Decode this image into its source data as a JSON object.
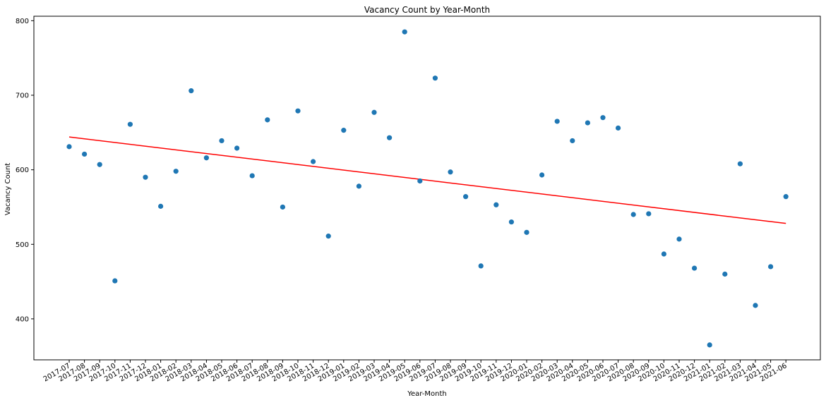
{
  "chart_data": {
    "type": "scatter",
    "title": "Vacancy Count by Year-Month",
    "xlabel": "Year-Month",
    "ylabel": "Vacancy Count",
    "categories": [
      "2017-07",
      "2017-08",
      "2017-09",
      "2017-10",
      "2017-11",
      "2017-12",
      "2018-01",
      "2018-02",
      "2018-03",
      "2018-04",
      "2018-05",
      "2018-06",
      "2018-07",
      "2018-08",
      "2018-09",
      "2018-10",
      "2018-11",
      "2018-12",
      "2019-01",
      "2019-02",
      "2019-03",
      "2019-04",
      "2019-05",
      "2019-06",
      "2019-07",
      "2019-08",
      "2019-09",
      "2019-10",
      "2019-11",
      "2019-12",
      "2020-01",
      "2020-02",
      "2020-03",
      "2020-04",
      "2020-05",
      "2020-06",
      "2020-07",
      "2020-08",
      "2020-09",
      "2020-10",
      "2020-11",
      "2020-12",
      "2021-01",
      "2021-02",
      "2021-03",
      "2021-04",
      "2021-05",
      "2021-06"
    ],
    "values": [
      631,
      621,
      607,
      451,
      661,
      590,
      551,
      598,
      706,
      616,
      639,
      629,
      592,
      667,
      550,
      679,
      611,
      511,
      653,
      578,
      677,
      643,
      785,
      585,
      723,
      597,
      564,
      471,
      553,
      530,
      516,
      593,
      665,
      639,
      663,
      670,
      656,
      540,
      541,
      487,
      507,
      468,
      365,
      460,
      608,
      418,
      470,
      564
    ],
    "trendline": {
      "start": 644,
      "end": 528
    },
    "ylim": [
      345,
      806
    ],
    "yticks": [
      400,
      500,
      600,
      700,
      800
    ],
    "grid": false,
    "colors": {
      "points": "#1f77b4",
      "trendline": "#ff0000",
      "axes": "#000000"
    }
  }
}
